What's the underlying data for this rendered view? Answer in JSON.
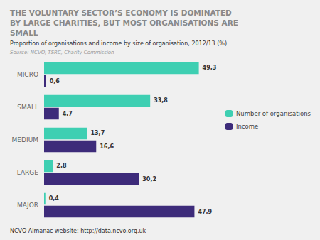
{
  "chart_data": {
    "type": "bar",
    "orientation": "horizontal",
    "title": "THE VOLUNTARY SECTOR’S ECONOMY IS DOMINATED\nBY LARGE CHARITIES, BUT MOST ORGANISATIONS ARE\nSMALL",
    "subtitle": "Proportion of organisations and income by size of organisation, 2012/13 (%)",
    "annotations": [
      "Source: NCVO, TSRC, Charity Commission",
      "NCVO Almanac website: http://data.ncvo.org.uk"
    ],
    "categories": [
      "MICRO",
      "SMALL",
      "MEDIUM",
      "LARGE",
      "MAJOR"
    ],
    "series": [
      {
        "name": "Number of organisations",
        "color": "#3ECFB2",
        "values": [
          49.3,
          33.8,
          13.7,
          2.8,
          0.4
        ],
        "value_labels": [
          "49,3",
          "33,8",
          "13,7",
          "2,8",
          "0,4"
        ]
      },
      {
        "name": "Income",
        "color": "#3D2B7A",
        "values": [
          0.6,
          4.7,
          16.6,
          30.2,
          47.9
        ],
        "value_labels": [
          "0,6",
          "4,7",
          "16,6",
          "30,2",
          "47,9"
        ]
      }
    ],
    "xlim": [
      0,
      58
    ],
    "tick_labels": "y",
    "grid": false,
    "legend": "right",
    "data_labels": true
  }
}
